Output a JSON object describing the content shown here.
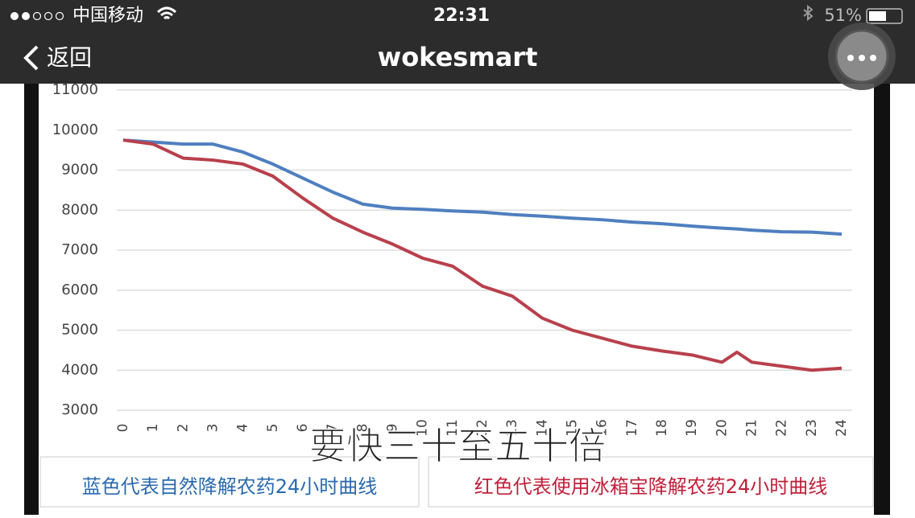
{
  "status_bar": {
    "carrier": "中国移动",
    "time": "22:31",
    "battery": "51%"
  },
  "nav_bar": {
    "back": "返回",
    "title": "wokesmart"
  },
  "chart_data": {
    "type": "line",
    "x": [
      0,
      1,
      2,
      3,
      4,
      5,
      6,
      7,
      8,
      9,
      10,
      11,
      12,
      13,
      14,
      15,
      16,
      17,
      18,
      19,
      20,
      20.5,
      21,
      22,
      23,
      24
    ],
    "xlim": [
      0,
      24
    ],
    "xticks": [
      0,
      1,
      2,
      3,
      4,
      5,
      6,
      7,
      8,
      9,
      10,
      11,
      12,
      13,
      14,
      15,
      16,
      17,
      18,
      19,
      20,
      21,
      22,
      23,
      24
    ],
    "ylim": [
      3000,
      11000
    ],
    "yticks": [
      3000,
      4000,
      5000,
      6000,
      7000,
      8000,
      9000,
      10000,
      11000
    ],
    "grid": true,
    "series": [
      {
        "color": "#4f7fbf",
        "values": [
          9750,
          9700,
          9650,
          9650,
          9450,
          9150,
          8800,
          8450,
          8150,
          8050,
          8020,
          7980,
          7950,
          7890,
          7850,
          7800,
          7760,
          7700,
          7660,
          7600,
          7550,
          7530,
          7500,
          7460,
          7450,
          7400
        ]
      },
      {
        "color": "#b8404c",
        "values": [
          9750,
          9650,
          9300,
          9250,
          9150,
          8850,
          8300,
          7800,
          7450,
          7150,
          6800,
          6600,
          6100,
          5850,
          5300,
          5000,
          4800,
          4600,
          4480,
          4380,
          4200,
          4450,
          4200,
          4100,
          4000,
          4050
        ]
      }
    ],
    "annotations": [
      "要快三十至五十倍",
      "蓝色代表自然降解农药24小时曲线",
      "红色代表使用冰箱宝降解农药24小时曲线"
    ]
  }
}
